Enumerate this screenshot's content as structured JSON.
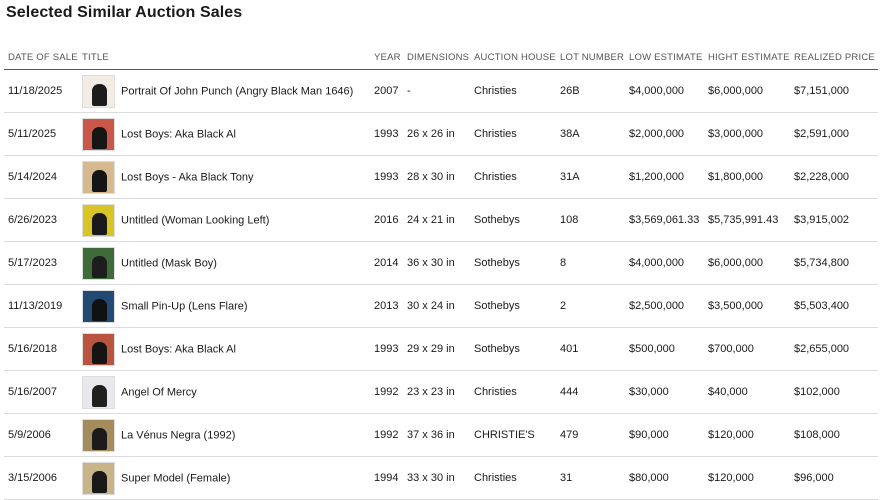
{
  "page_title": "Selected Similar Auction Sales",
  "columns": [
    "DATE OF SALE",
    "TITLE",
    "YEAR",
    "DIMENSIONS",
    "AUCTION HOUSE",
    "LOT NUMBER",
    "LOW ESTIMATE",
    "HIGHT ESTIMATE",
    "REALIZED PRICE"
  ],
  "rows": [
    {
      "date": "11/18/2025",
      "title": "Portrait Of John Punch (Angry Black Man 1646)",
      "year": "2007",
      "dimensions": "-",
      "house": "Christies",
      "lot": "26B",
      "low": "$4,000,000",
      "high": "$6,000,000",
      "realized": "$7,151,000",
      "thumb_bg": "#f2ece4",
      "thumb_fig": "#1c1c1c"
    },
    {
      "date": "5/11/2025",
      "title": "Lost Boys: Aka Black Al",
      "year": "1993",
      "dimensions": "26 x 26 in",
      "house": "Christies",
      "lot": "38A",
      "low": "$2,000,000",
      "high": "$3,000,000",
      "realized": "$2,591,000",
      "thumb_bg": "#c9584a",
      "thumb_fig": "#161616"
    },
    {
      "date": "5/14/2024",
      "title": "Lost Boys - Aka Black Tony",
      "year": "1993",
      "dimensions": "28 x 30 in",
      "house": "Christies",
      "lot": "31A",
      "low": "$1,200,000",
      "high": "$1,800,000",
      "realized": "$2,228,000",
      "thumb_bg": "#d7b98f",
      "thumb_fig": "#151515"
    },
    {
      "date": "6/26/2023",
      "title": "Untitled (Woman Looking Left)",
      "year": "2016",
      "dimensions": "24 x 21 in",
      "house": "Sothebys",
      "lot": "108",
      "low": "$3,569,061.33",
      "high": "$5,735,991.43",
      "realized": "$3,915,002",
      "thumb_bg": "#d9c428",
      "thumb_fig": "#1a1a1a"
    },
    {
      "date": "5/17/2023",
      "title": "Untitled (Mask Boy)",
      "year": "2014",
      "dimensions": "36 x 30 in",
      "house": "Sothebys",
      "lot": "8",
      "low": "$4,000,000",
      "high": "$6,000,000",
      "realized": "$5,734,800",
      "thumb_bg": "#3f6b3a",
      "thumb_fig": "#1d1d1d"
    },
    {
      "date": "11/13/2019",
      "title": "Small Pin-Up (Lens Flare)",
      "year": "2013",
      "dimensions": "30 x 24 in",
      "house": "Sothebys",
      "lot": "2",
      "low": "$2,500,000",
      "high": "$3,500,000",
      "realized": "$5,503,400",
      "thumb_bg": "#234a73",
      "thumb_fig": "#111111"
    },
    {
      "date": "5/16/2018",
      "title": "Lost Boys: Aka Black Al",
      "year": "1993",
      "dimensions": "29 x 29 in",
      "house": "Sothebys",
      "lot": "401",
      "low": "$500,000",
      "high": "$700,000",
      "realized": "$2,655,000",
      "thumb_bg": "#b8543f",
      "thumb_fig": "#141414"
    },
    {
      "date": "5/16/2007",
      "title": "Angel Of Mercy",
      "year": "1992",
      "dimensions": "23 x 23 in",
      "house": "Christies",
      "lot": "444",
      "low": "$30,000",
      "high": "$40,000",
      "realized": "$102,000",
      "thumb_bg": "#e8e8ee",
      "thumb_fig": "#202020"
    },
    {
      "date": "5/9/2006",
      "title": "La Vénus Negra (1992)",
      "year": "1992",
      "dimensions": "37 x 36 in",
      "house": "CHRISTIE'S",
      "lot": "479",
      "low": "$90,000",
      "high": "$120,000",
      "realized": "$108,000",
      "thumb_bg": "#a58c5c",
      "thumb_fig": "#1b1b1b"
    },
    {
      "date": "3/15/2006",
      "title": "Super Model (Female)",
      "year": "1994",
      "dimensions": "33 x 30 in",
      "house": "Christies",
      "lot": "31",
      "low": "$80,000",
      "high": "$120,000",
      "realized": "$96,000",
      "thumb_bg": "#c9b48a",
      "thumb_fig": "#181818"
    }
  ]
}
